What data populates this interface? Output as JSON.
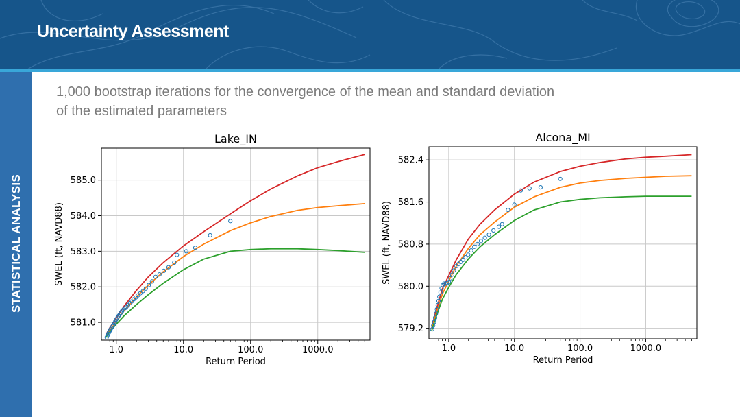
{
  "slide": {
    "title": "Uncertainty Assessment",
    "sidebar_label": "STATISTICAL ANALYSIS",
    "subtitle_line1": "1,000 bootstrap iterations for the convergence of the mean and standard deviation",
    "subtitle_line2": "of the estimated parameters"
  },
  "colors": {
    "header_bg": "#16558a",
    "header_rule": "#39a7d9",
    "sidebar_bg": "#2f6fae",
    "observed": "#1f77b4",
    "upper": "#d62728",
    "mean": "#ff7f0e",
    "lower": "#2ca02c"
  },
  "chart_data": [
    {
      "type": "line",
      "title": "Lake_IN",
      "xlabel": "Return Period",
      "ylabel": "SWEL (ft, NAVD88)",
      "x_scale": "log",
      "xlim": [
        0.6,
        6000
      ],
      "ylim": [
        580.5,
        585.9
      ],
      "x_ticks": [
        "1.0",
        "10.0",
        "100.0",
        "1000.0"
      ],
      "y_ticks": [
        "581.0",
        "582.0",
        "583.0",
        "584.0",
        "585.0"
      ],
      "grid": true,
      "series": [
        {
          "role": "upper",
          "x": [
            0.7,
            0.8,
            1,
            1.3,
            2,
            3,
            5,
            10,
            20,
            50,
            100,
            200,
            500,
            1000,
            2000,
            5000
          ],
          "y": [
            580.65,
            580.85,
            581.12,
            581.45,
            581.9,
            582.28,
            582.68,
            583.15,
            583.55,
            584.05,
            584.42,
            584.75,
            585.12,
            585.35,
            585.52,
            585.72
          ]
        },
        {
          "role": "mean",
          "x": [
            0.7,
            0.8,
            1,
            1.3,
            2,
            3,
            5,
            10,
            20,
            50,
            100,
            200,
            500,
            1000,
            2000,
            5000
          ],
          "y": [
            580.6,
            580.78,
            581.02,
            581.32,
            581.72,
            582.05,
            582.42,
            582.85,
            583.2,
            583.58,
            583.8,
            583.98,
            584.15,
            584.23,
            584.28,
            584.34
          ]
        },
        {
          "role": "lower",
          "x": [
            0.7,
            0.8,
            1,
            1.3,
            2,
            3,
            5,
            10,
            20,
            50,
            100,
            200,
            500,
            1000,
            2000,
            5000
          ],
          "y": [
            580.58,
            580.73,
            580.95,
            581.18,
            581.5,
            581.78,
            582.1,
            582.48,
            582.78,
            583.0,
            583.05,
            583.07,
            583.07,
            583.05,
            583.02,
            582.97
          ]
        },
        {
          "role": "observed",
          "x": [
            0.72,
            0.74,
            0.76,
            0.78,
            0.8,
            0.82,
            0.85,
            0.88,
            0.91,
            0.94,
            0.97,
            1.0,
            1.04,
            1.08,
            1.12,
            1.17,
            1.22,
            1.28,
            1.35,
            1.42,
            1.5,
            1.6,
            1.7,
            1.82,
            1.95,
            2.1,
            2.28,
            2.5,
            2.75,
            3.05,
            3.4,
            3.85,
            4.4,
            5.1,
            6.0,
            7.3,
            8.0,
            11.0,
            15.0,
            25.0,
            50.0
          ],
          "y": [
            580.58,
            580.63,
            580.68,
            580.72,
            580.76,
            580.8,
            580.85,
            580.89,
            580.93,
            580.98,
            581.03,
            581.08,
            581.13,
            581.18,
            581.22,
            581.27,
            581.32,
            581.36,
            581.4,
            581.44,
            581.49,
            581.54,
            581.59,
            581.65,
            581.7,
            581.76,
            581.82,
            581.88,
            581.95,
            582.05,
            582.15,
            582.28,
            582.35,
            582.45,
            582.55,
            582.68,
            582.9,
            583.0,
            583.1,
            583.45,
            583.85
          ]
        }
      ]
    },
    {
      "type": "line",
      "title": "Alcona_MI",
      "xlabel": "Return Period",
      "ylabel": "SWEL (ft, NAVD88)",
      "x_scale": "log",
      "xlim": [
        0.5,
        6000
      ],
      "ylim": [
        579.0,
        582.65
      ],
      "x_ticks": [
        "1.0",
        "10.0",
        "100.0",
        "1000.0"
      ],
      "y_ticks": [
        "579.2",
        "580.0",
        "580.8",
        "581.6",
        "582.4"
      ],
      "grid": true,
      "series": [
        {
          "role": "upper",
          "x": [
            0.55,
            0.6,
            0.7,
            0.8,
            1,
            1.3,
            2,
            3,
            5,
            10,
            20,
            50,
            100,
            200,
            500,
            1000,
            2000,
            5000
          ],
          "y": [
            579.2,
            579.4,
            579.7,
            579.95,
            580.2,
            580.5,
            580.9,
            581.18,
            581.45,
            581.75,
            581.98,
            582.18,
            582.28,
            582.35,
            582.42,
            582.45,
            582.47,
            582.5
          ]
        },
        {
          "role": "mean",
          "x": [
            0.55,
            0.6,
            0.7,
            0.8,
            1,
            1.3,
            2,
            3,
            5,
            10,
            20,
            50,
            100,
            200,
            500,
            1000,
            2000,
            5000
          ],
          "y": [
            579.18,
            579.35,
            579.62,
            579.85,
            580.1,
            580.38,
            580.72,
            580.98,
            581.22,
            581.5,
            581.7,
            581.88,
            581.96,
            582.01,
            582.05,
            582.07,
            582.09,
            582.1
          ]
        },
        {
          "role": "lower",
          "x": [
            0.55,
            0.6,
            0.7,
            0.8,
            1,
            1.3,
            2,
            3,
            5,
            10,
            20,
            50,
            100,
            200,
            500,
            1000,
            2000,
            5000
          ],
          "y": [
            579.15,
            579.3,
            579.55,
            579.75,
            579.98,
            580.22,
            580.52,
            580.75,
            580.98,
            581.25,
            581.45,
            581.6,
            581.65,
            581.68,
            581.7,
            581.71,
            581.71,
            581.71
          ]
        },
        {
          "role": "observed",
          "x": [
            0.56,
            0.58,
            0.6,
            0.62,
            0.64,
            0.66,
            0.68,
            0.7,
            0.72,
            0.75,
            0.78,
            0.81,
            0.85,
            0.9,
            0.95,
            1.0,
            1.06,
            1.13,
            1.2,
            1.3,
            1.4,
            1.52,
            1.65,
            1.8,
            1.98,
            2.2,
            2.45,
            2.75,
            3.1,
            3.55,
            4.1,
            4.8,
            5.8,
            6.5,
            8.0,
            10.0,
            12.5,
            17.0,
            25.0,
            50.0
          ],
          "y": [
            579.18,
            579.25,
            579.32,
            579.4,
            579.48,
            579.56,
            579.64,
            579.72,
            579.8,
            579.88,
            579.96,
            580.02,
            580.05,
            580.05,
            580.06,
            580.08,
            580.15,
            580.22,
            580.3,
            580.38,
            580.42,
            580.46,
            580.5,
            580.55,
            580.6,
            580.68,
            580.75,
            580.8,
            580.86,
            580.92,
            580.98,
            581.06,
            581.13,
            581.18,
            581.45,
            581.55,
            581.82,
            581.86,
            581.88,
            582.04
          ]
        }
      ]
    }
  ]
}
